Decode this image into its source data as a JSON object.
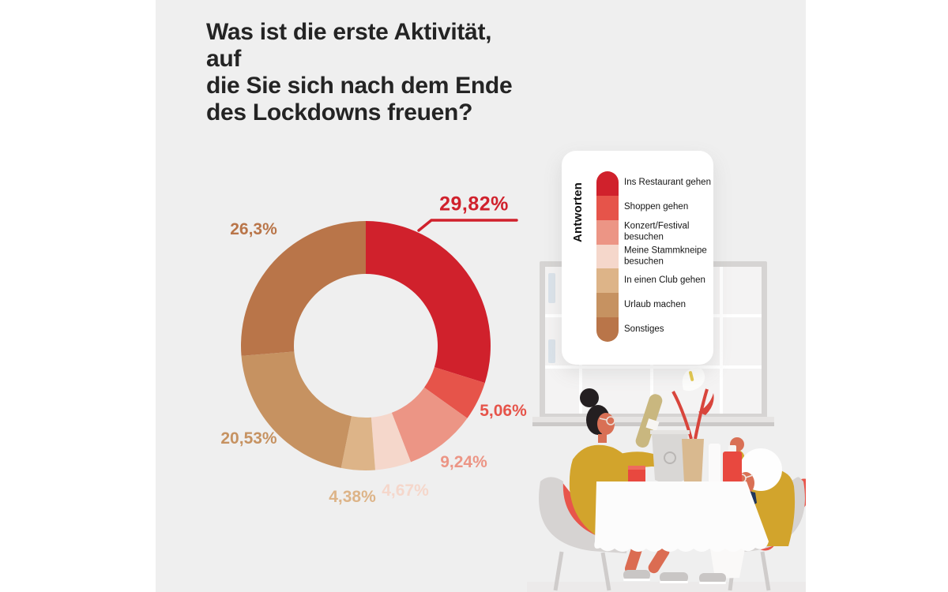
{
  "page": {
    "background": "#ffffff",
    "canvas_background": "#efefef",
    "accent_red": "#c9202b"
  },
  "title": {
    "lines": [
      "Was ist die erste Aktivität, auf",
      "die Sie sich nach dem Ende",
      "des Lockdowns freuen?"
    ],
    "color": "#242424"
  },
  "legend": {
    "title": "Antworten"
  },
  "chart_data": {
    "type": "pie",
    "donut": true,
    "title": "Was ist die erste Aktivität, auf die Sie sich nach dem Ende des Lockdowns freuen?",
    "legend_title": "Antworten",
    "legend_position": "right",
    "categories": [
      "Ins Restaurant gehen",
      "Shoppen gehen",
      "Konzert/Festival besuchen",
      "Meine Stammkneipe besuchen",
      "In einen Club gehen",
      "Urlaub machen",
      "Sonstiges"
    ],
    "values": [
      29.82,
      5.06,
      9.24,
      4.67,
      4.38,
      20.53,
      26.3
    ],
    "value_labels": [
      "29,82%",
      "5,06%",
      "9,24%",
      "4,67%",
      "4,38%",
      "20,53%",
      "26,3%"
    ],
    "colors": [
      "#d0212c",
      "#e6544a",
      "#ec9585",
      "#f5d7cb",
      "#ddb488",
      "#c69261",
      "#b97549"
    ],
    "start_angle_deg": 0,
    "direction": "clockwise",
    "highlighted_label": "29,82%"
  },
  "illustration": {
    "name": "restaurant-scene",
    "description": "Two people dining at a table in front of a window"
  }
}
